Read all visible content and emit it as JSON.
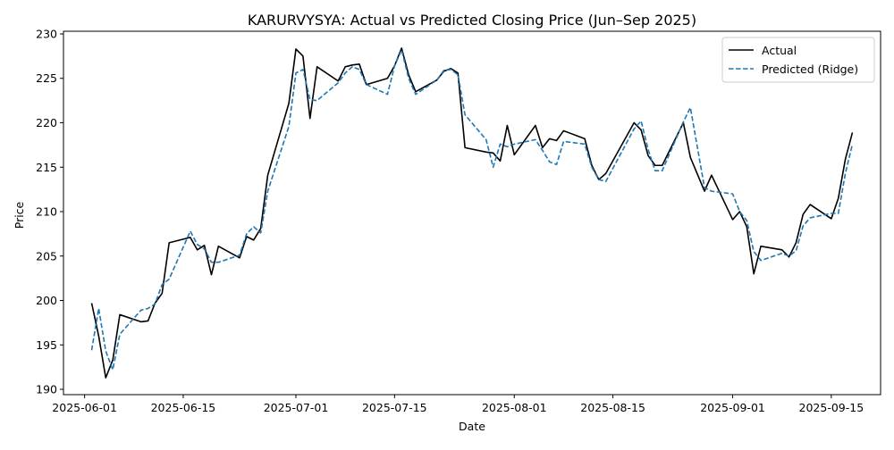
{
  "colors": {
    "actual": "#000000",
    "predicted": "#1f77b4",
    "axes": "#000000",
    "background": "#ffffff"
  },
  "chart_data": {
    "type": "line",
    "title": "KARURVYSYA: Actual vs Predicted Closing Price (Jun–Sep 2025)",
    "xlabel": "Date",
    "ylabel": "Price",
    "xlim": [
      "2025-05-29",
      "2025-09-22"
    ],
    "ylim": [
      189.4,
      230.3
    ],
    "x_ticks": [
      "2025-06-01",
      "2025-06-15",
      "2025-07-01",
      "2025-07-15",
      "2025-08-01",
      "2025-08-15",
      "2025-09-01",
      "2025-09-15"
    ],
    "y_ticks": [
      190,
      195,
      200,
      205,
      210,
      215,
      220,
      225,
      230
    ],
    "grid": false,
    "legend": {
      "placement": "top-right",
      "entries": [
        "Actual",
        "Predicted (Ridge)"
      ]
    },
    "x": [
      "2025-06-02",
      "2025-06-03",
      "2025-06-04",
      "2025-06-05",
      "2025-06-06",
      "2025-06-09",
      "2025-06-10",
      "2025-06-11",
      "2025-06-12",
      "2025-06-13",
      "2025-06-16",
      "2025-06-17",
      "2025-06-18",
      "2025-06-19",
      "2025-06-20",
      "2025-06-23",
      "2025-06-24",
      "2025-06-25",
      "2025-06-26",
      "2025-06-27",
      "2025-06-30",
      "2025-07-01",
      "2025-07-02",
      "2025-07-03",
      "2025-07-04",
      "2025-07-07",
      "2025-07-08",
      "2025-07-09",
      "2025-07-10",
      "2025-07-11",
      "2025-07-14",
      "2025-07-15",
      "2025-07-16",
      "2025-07-17",
      "2025-07-18",
      "2025-07-21",
      "2025-07-22",
      "2025-07-23",
      "2025-07-24",
      "2025-07-25",
      "2025-07-28",
      "2025-07-29",
      "2025-07-30",
      "2025-07-31",
      "2025-08-01",
      "2025-08-04",
      "2025-08-05",
      "2025-08-06",
      "2025-08-07",
      "2025-08-08",
      "2025-08-11",
      "2025-08-12",
      "2025-08-13",
      "2025-08-14",
      "2025-08-18",
      "2025-08-19",
      "2025-08-20",
      "2025-08-21",
      "2025-08-22",
      "2025-08-25",
      "2025-08-26",
      "2025-08-28",
      "2025-08-29",
      "2025-09-01",
      "2025-09-02",
      "2025-09-03",
      "2025-09-04",
      "2025-09-05",
      "2025-09-08",
      "2025-09-09",
      "2025-09-10",
      "2025-09-11",
      "2025-09-12",
      "2025-09-15",
      "2025-09-16",
      "2025-09-17",
      "2025-09-18"
    ],
    "series": [
      {
        "name": "Actual",
        "style": "solid",
        "color": "#000000",
        "values": [
          199.7,
          196.0,
          191.3,
          193.3,
          198.4,
          197.6,
          197.7,
          199.7,
          200.8,
          206.5,
          207.1,
          205.7,
          206.2,
          202.9,
          206.1,
          204.8,
          207.2,
          206.8,
          208.1,
          214.1,
          222.2,
          228.3,
          227.5,
          220.5,
          226.3,
          224.7,
          226.3,
          226.5,
          226.6,
          224.3,
          225.0,
          226.4,
          228.4,
          225.4,
          223.5,
          224.8,
          225.8,
          226.1,
          225.6,
          217.2,
          216.7,
          216.6,
          215.7,
          219.7,
          216.4,
          219.7,
          217.2,
          218.2,
          218.0,
          219.1,
          218.2,
          215.2,
          213.6,
          214.3,
          220.0,
          219.2,
          216.3,
          215.2,
          215.2,
          220.0,
          216.1,
          212.3,
          214.1,
          209.1,
          210.0,
          208.3,
          203.0,
          206.1,
          205.7,
          204.9,
          206.5,
          209.7,
          210.8,
          209.2,
          211.5,
          215.9,
          218.9
        ]
      },
      {
        "name": "Predicted (Ridge)",
        "style": "dashed",
        "color": "#1f77b4",
        "values": [
          194.4,
          199.1,
          194.3,
          192.2,
          196.2,
          198.9,
          199.1,
          199.6,
          201.8,
          202.4,
          207.8,
          206.3,
          205.8,
          204.3,
          204.3,
          205.1,
          207.5,
          208.3,
          207.6,
          212.3,
          219.6,
          225.6,
          226.0,
          222.6,
          222.5,
          224.5,
          225.6,
          226.3,
          226.0,
          224.3,
          223.2,
          226.4,
          228.2,
          225.0,
          223.2,
          224.8,
          225.9,
          226.0,
          225.4,
          220.9,
          218.1,
          215.0,
          217.6,
          217.3,
          217.6,
          218.1,
          216.9,
          215.6,
          215.3,
          217.9,
          217.6,
          215.0,
          213.6,
          213.4,
          219.3,
          220.2,
          217.0,
          214.6,
          214.6,
          220.1,
          221.7,
          212.7,
          212.3,
          212.0,
          210.0,
          209.0,
          205.5,
          204.5,
          205.3,
          205.0,
          205.6,
          208.4,
          209.3,
          209.8,
          209.8,
          214.3,
          217.6
        ]
      }
    ]
  }
}
